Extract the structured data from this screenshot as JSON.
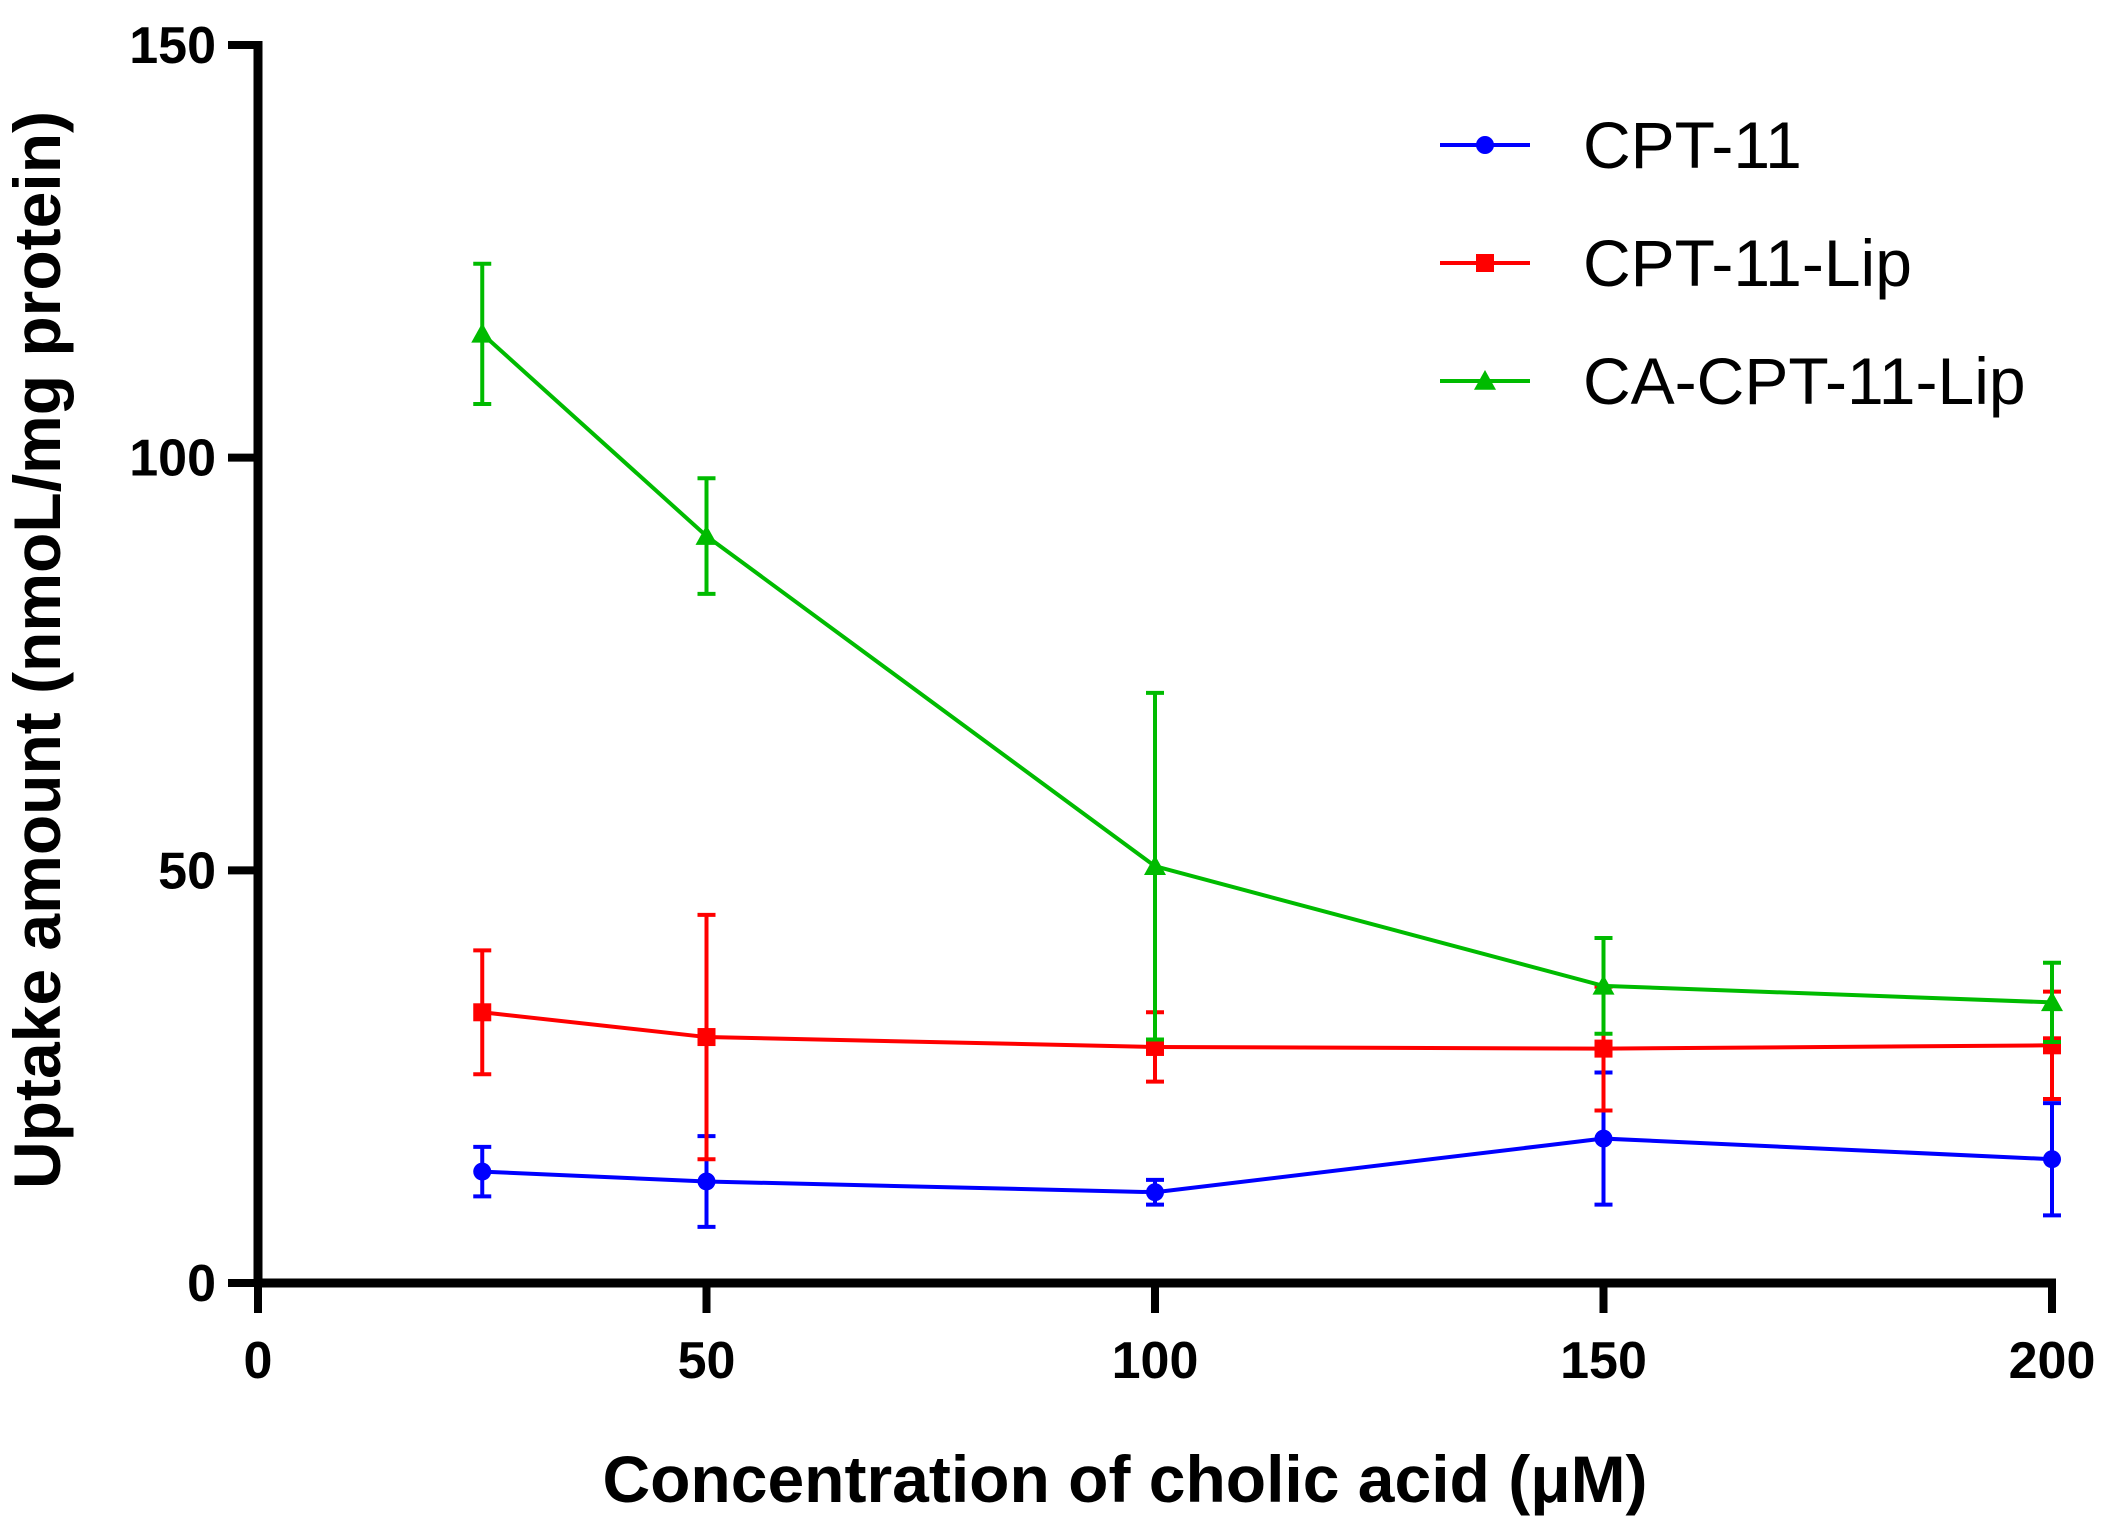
{
  "chart_data": {
    "type": "line",
    "title": "",
    "xlabel": "Concentration of cholic acid (μM)",
    "ylabel": "Uptake amount (nmoL/mg protein)",
    "xlim": [
      0,
      200
    ],
    "ylim": [
      0,
      150
    ],
    "xticks": [
      0,
      50,
      100,
      150,
      200
    ],
    "yticks": [
      0,
      50,
      100,
      150
    ],
    "x": [
      25,
      50,
      100,
      150,
      200
    ],
    "legend_position": "top-right",
    "series": [
      {
        "name": "CPT-11",
        "color": "#0000ff",
        "marker": "circle",
        "values": [
          13.5,
          12.3,
          11.0,
          17.5,
          15.0
        ],
        "errors": [
          3.0,
          5.5,
          1.5,
          8.0,
          6.8
        ]
      },
      {
        "name": "CPT-11-Lip",
        "color": "#ff0000",
        "marker": "square",
        "values": [
          32.8,
          29.8,
          28.6,
          28.4,
          28.8
        ],
        "errors": [
          7.5,
          14.8,
          4.2,
          7.5,
          6.5
        ]
      },
      {
        "name": "CA-CPT-11-Lip",
        "color": "#00bb00",
        "marker": "triangle",
        "values": [
          115.0,
          90.5,
          50.5,
          36.0,
          34.0
        ],
        "errors": [
          8.5,
          7.0,
          21.0,
          5.8,
          4.8
        ]
      }
    ]
  }
}
